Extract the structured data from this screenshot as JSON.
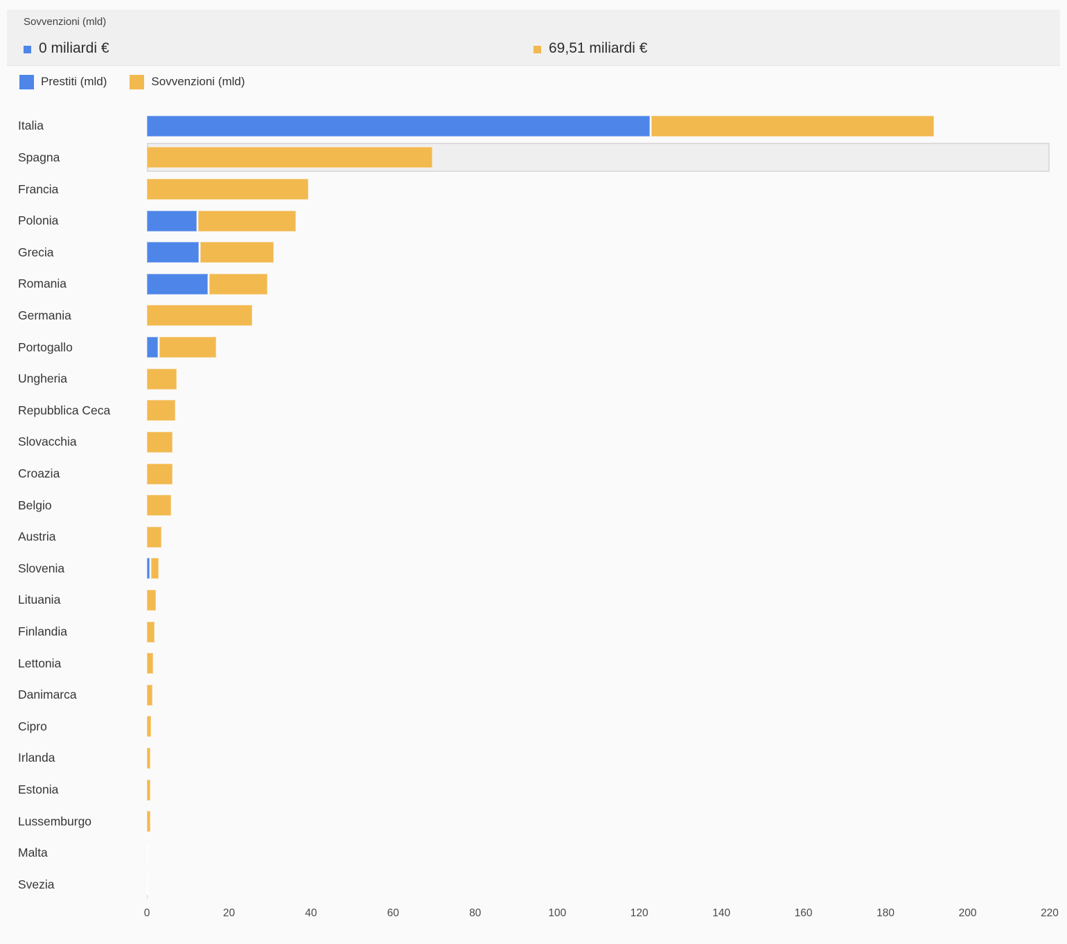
{
  "tooltip": {
    "title": "Sovvenzioni (mld)",
    "entries": [
      {
        "series": "Prestiti (mld)",
        "label": "0 miliardi €",
        "color": "#4d86e8"
      },
      {
        "series": "Sovvenzioni (mld)",
        "label": "69,51 miliardi €",
        "color": "#f2b94f"
      }
    ]
  },
  "legend": [
    {
      "label": "Prestiti (mld)",
      "color": "#4d86e8"
    },
    {
      "label": "Sovvenzioni (mld)",
      "color": "#f2b94f"
    }
  ],
  "colors": {
    "prestiti": "#4d86e8",
    "sovvenzioni": "#f2b94f",
    "background": "#fafafa",
    "tooltip_background": "#f0f0f0",
    "highlight_fill": "#efefef",
    "highlight_border": "#dcdcdc"
  },
  "chart_data": {
    "type": "bar",
    "orientation": "horizontal",
    "stacked": true,
    "unit": "miliardi €",
    "categories": [
      "Italia",
      "Spagna",
      "Francia",
      "Polonia",
      "Grecia",
      "Romania",
      "Germania",
      "Portogallo",
      "Ungheria",
      "Repubblica Ceca",
      "Slovacchia",
      "Croazia",
      "Belgio",
      "Austria",
      "Slovenia",
      "Lituania",
      "Finlandia",
      "Lettonia",
      "Danimarca",
      "Cipro",
      "Irlanda",
      "Estonia",
      "Lussemburgo",
      "Malta",
      "Svezia"
    ],
    "series": [
      {
        "name": "Prestiti (mld)",
        "color": "#4d86e8",
        "values": [
          122.6,
          0,
          0,
          12.1,
          12.7,
          14.9,
          0,
          2.7,
          0,
          0,
          0,
          0,
          0,
          0,
          0.7,
          0,
          0,
          0,
          0,
          0,
          0,
          0,
          0,
          0,
          0
        ]
      },
      {
        "name": "Sovvenzioni (mld)",
        "color": "#f2b94f",
        "values": [
          68.9,
          69.51,
          39.4,
          23.9,
          17.8,
          14.2,
          25.6,
          13.9,
          7.2,
          7.0,
          6.3,
          6.3,
          5.9,
          3.5,
          1.8,
          2.2,
          1.9,
          1.6,
          1.4,
          1.0,
          0.9,
          0.9,
          0.8,
          0,
          0
        ]
      }
    ],
    "xlim": [
      0,
      220
    ],
    "xticks": [
      0,
      20,
      40,
      60,
      80,
      100,
      120,
      140,
      160,
      180,
      200,
      220
    ],
    "highlighted_category": "Spagna",
    "hovered_series": "Sovvenzioni (mld)",
    "legend_position": "top",
    "grid": false
  }
}
